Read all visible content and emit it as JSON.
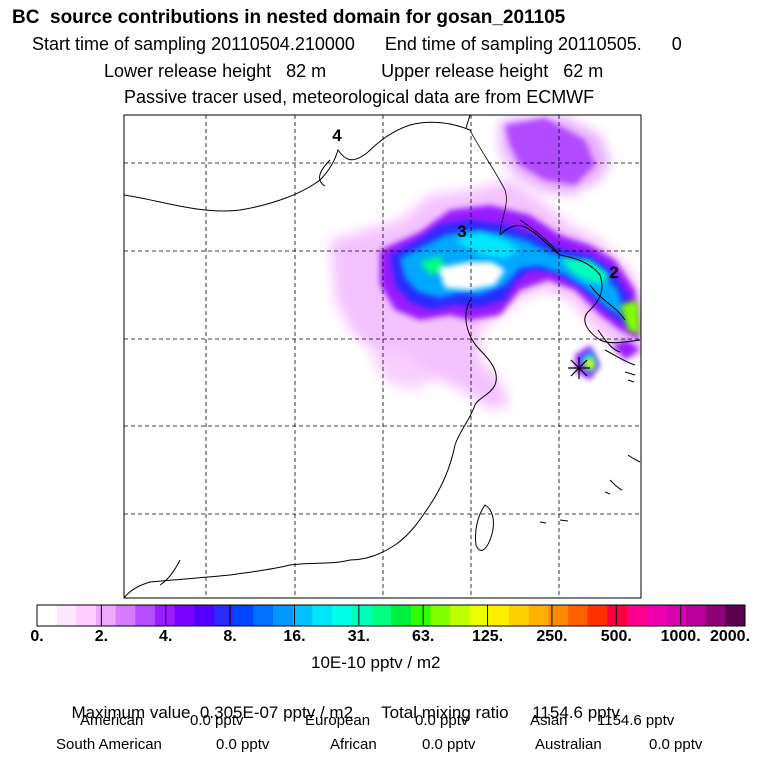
{
  "header": {
    "title": "BC  source contributions in nested domain for gosan_201105",
    "sampling_line": "Start time of sampling 20110504.210000      End time of sampling 20110505.      0",
    "release_line": "Lower release height   82 m           Upper release height   62 m",
    "tracer_line": "Passive tracer used, meteorological data are from ECMWF"
  },
  "chart_data": {
    "type": "heatmap",
    "title": "BC  source contributions in nested domain for gosan_201105",
    "colorbar": {
      "unit": "10E-10 pptv / m2",
      "ticks": [
        "0.",
        "2.",
        "4.",
        "8.",
        "16.",
        "31.",
        "63.",
        "125.",
        "250.",
        "500.",
        "1000.",
        "2000."
      ],
      "colors": [
        "#ffffff",
        "#ffe6ff",
        "#ffccff",
        "#f0a8ff",
        "#d77cff",
        "#b84cff",
        "#9a1cff",
        "#7a00ff",
        "#5400ff",
        "#2a2aff",
        "#0048ff",
        "#0070ff",
        "#0098ff",
        "#00c0ff",
        "#00e6ff",
        "#00ffe6",
        "#00ffbb",
        "#00ff80",
        "#00f040",
        "#30ff00",
        "#80ff00",
        "#c0ff00",
        "#eaff00",
        "#ffee00",
        "#ffd000",
        "#ffb000",
        "#ff8a00",
        "#ff6000",
        "#ff3000",
        "#ff0040",
        "#ff0090",
        "#f000b0",
        "#d800b0",
        "#b80098",
        "#8c0078",
        "#5c0050"
      ]
    },
    "region_labels": [
      "4",
      "3",
      "2"
    ],
    "receptor": "gosan"
  },
  "summary": {
    "maximum_label": "Maximum value  0.305E-07 pptv / m2",
    "total_label": "Total mixing ratio     1154.6 pptv",
    "regions": [
      {
        "name": "American",
        "value": "0.0 pptv"
      },
      {
        "name": "European",
        "value": "0.0 pptv"
      },
      {
        "name": "Asian",
        "value": "1154.6 pptv"
      },
      {
        "name": "South American",
        "value": "0.0 pptv"
      },
      {
        "name": "African",
        "value": "0.0 pptv"
      },
      {
        "name": "Australian",
        "value": "0.0 pptv"
      }
    ]
  }
}
